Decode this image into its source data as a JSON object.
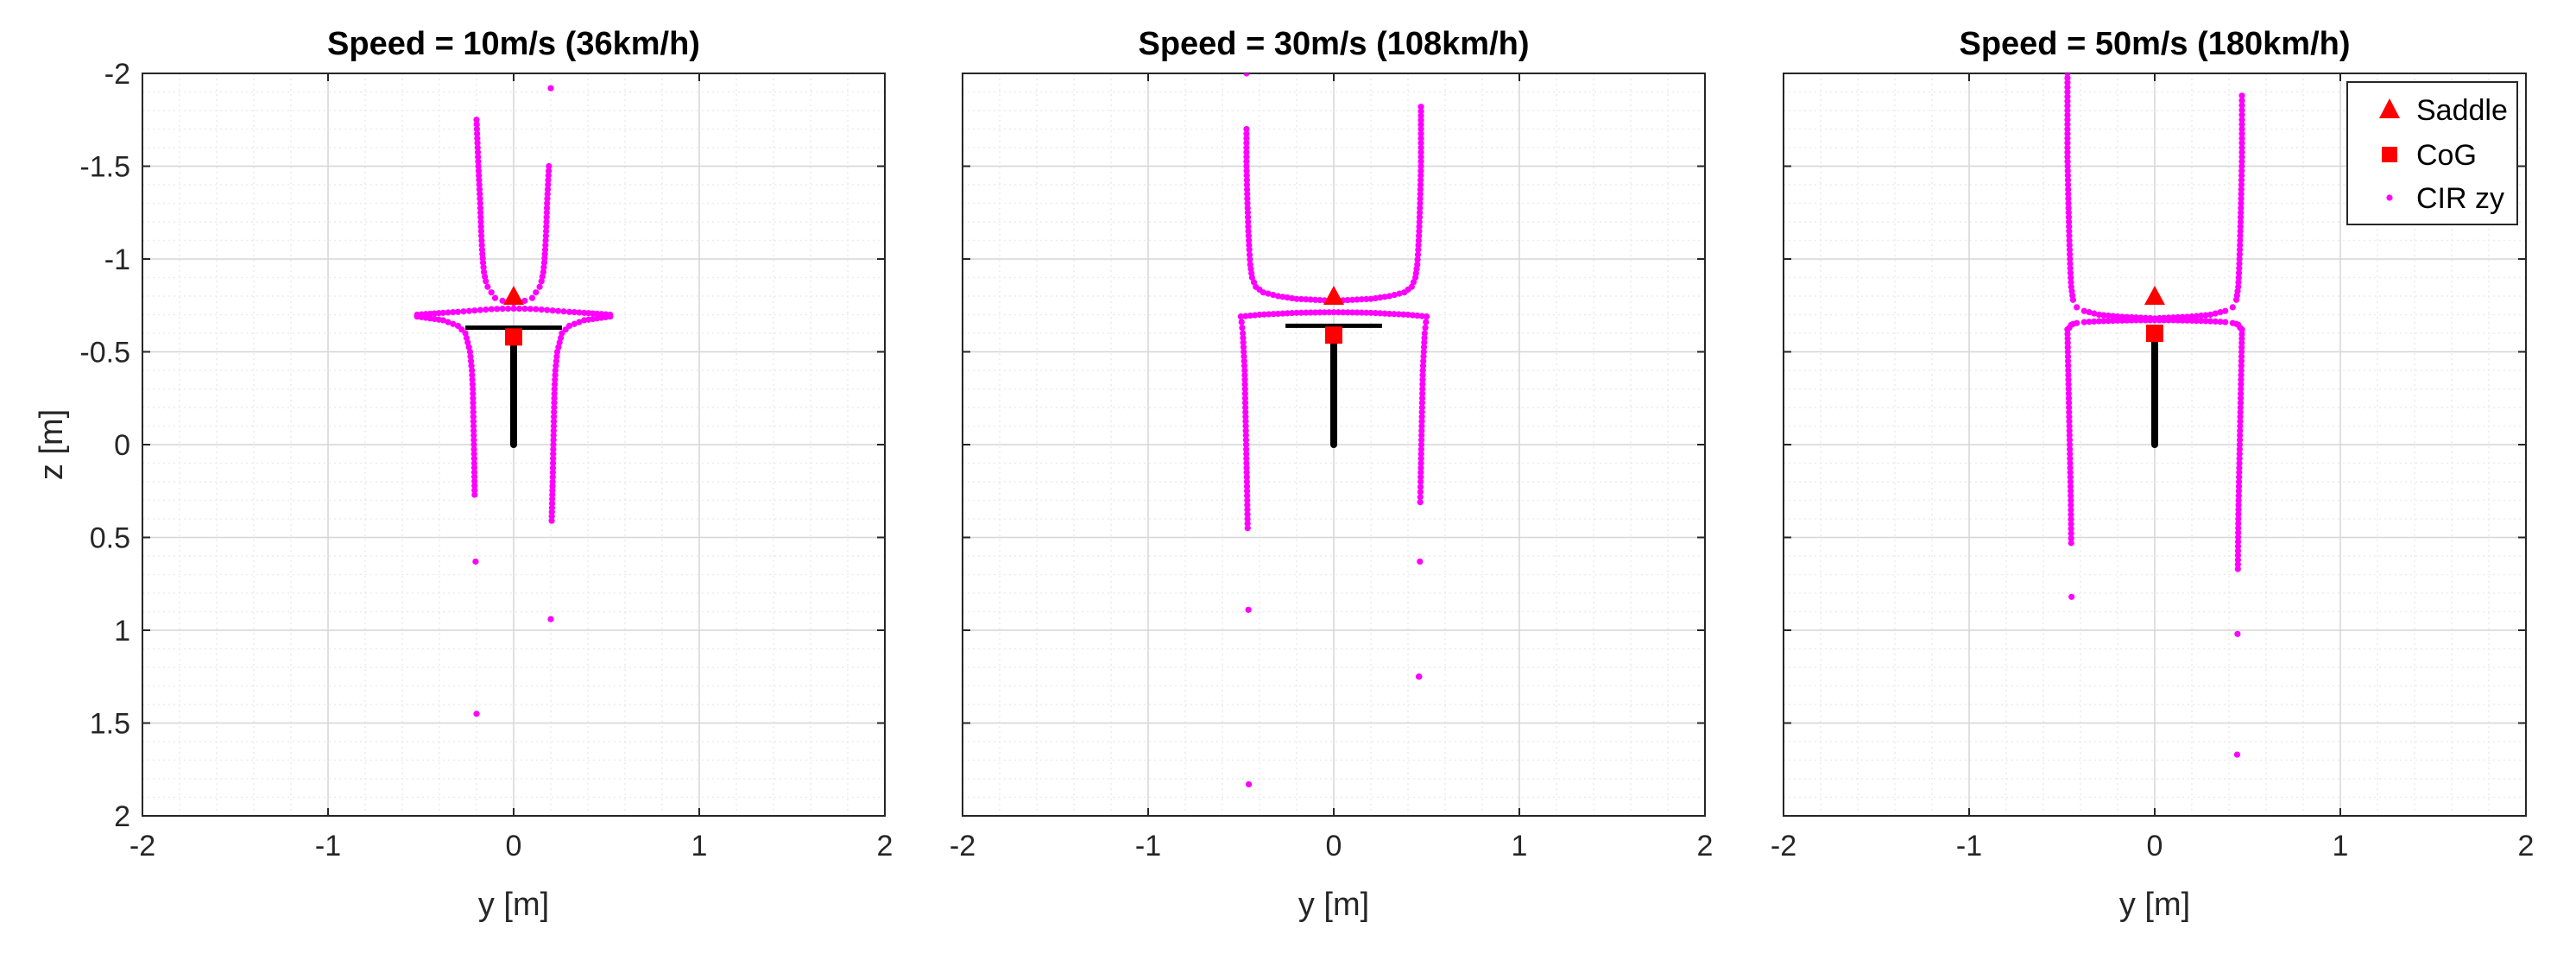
{
  "colors": {
    "cir": "#ff00ff",
    "marker": "#ff0000",
    "bike": "#000000",
    "grid_major": "#d6d6d6",
    "grid_minor": "#ececec",
    "axis": "#262626"
  },
  "chart_data": [
    {
      "type": "scatter",
      "title": "Speed = 10m/s (36km/h)",
      "xlabel": "y [m]",
      "ylabel": "z [m]",
      "xlim": [
        -2,
        2
      ],
      "ylim": [
        -2,
        2
      ],
      "y_reversed": true,
      "grid": "major and minor",
      "x_ticks": [
        "-2",
        "-1",
        "0",
        "1",
        "2"
      ],
      "y_ticks": [
        "-2",
        "-1.5",
        "-1",
        "-0.5",
        "0",
        "0.5",
        "1",
        "1.5",
        "2"
      ],
      "saddle": {
        "y": 0,
        "z": -0.8
      },
      "cog": {
        "y": 0,
        "z": -0.58
      },
      "bike": {
        "handlebar_y": [
          -0.26,
          0.26
        ],
        "handlebar_z": -0.63,
        "stem_z": [
          0,
          -0.6
        ]
      },
      "series": [
        {
          "name": "CIR zy",
          "x": [
            -0.2,
            -0.19,
            -0.18,
            -0.175,
            -0.17,
            -0.165,
            -0.16,
            -0.15,
            -0.14,
            -0.12,
            -0.1,
            -0.06,
            -0.03,
            0.0,
            0.03,
            0.06,
            0.1,
            0.12,
            0.14,
            0.15,
            0.16,
            0.165,
            0.17,
            0.175,
            0.18,
            0.19,
            0.2
          ],
          "y": [
            -1.75,
            -1.5,
            -1.3,
            -1.15,
            -1.05,
            -0.98,
            -0.93,
            -0.88,
            -0.85,
            -0.82,
            -0.79,
            -0.775,
            -0.77,
            -0.765,
            -0.77,
            -0.775,
            -0.79,
            -0.82,
            -0.85,
            -0.88,
            -0.93,
            -0.98,
            -1.05,
            -1.15,
            -1.3,
            -1.5,
            -1.92
          ]
        },
        {
          "name": "",
          "x": [
            -0.52,
            -0.45,
            -0.38,
            -0.3,
            -0.24,
            -0.18,
            -0.12,
            -0.06,
            0.0,
            0.06,
            0.12,
            0.18,
            0.24,
            0.3,
            0.38,
            0.45,
            0.52
          ],
          "y": [
            -0.7,
            -0.705,
            -0.71,
            -0.715,
            -0.72,
            -0.725,
            -0.73,
            -0.732,
            -0.733,
            -0.732,
            -0.73,
            -0.725,
            -0.72,
            -0.715,
            -0.71,
            -0.705,
            -0.7
          ]
        },
        {
          "name": "",
          "x": [
            -0.52,
            -0.45,
            -0.38,
            -0.3,
            -0.26,
            -0.235,
            -0.225,
            -0.22,
            -0.218,
            -0.216,
            -0.214,
            -0.212,
            -0.21,
            -0.205,
            -0.2
          ],
          "y": [
            -0.69,
            -0.68,
            -0.67,
            -0.64,
            -0.6,
            -0.5,
            -0.4,
            -0.3,
            -0.2,
            -0.1,
            0.0,
            0.1,
            0.27,
            0.63,
            1.45
          ]
        },
        {
          "name": "",
          "x": [
            0.52,
            0.45,
            0.38,
            0.3,
            0.26,
            0.235,
            0.225,
            0.22,
            0.218,
            0.216,
            0.214,
            0.212,
            0.21,
            0.205,
            0.2
          ],
          "y": [
            -0.69,
            -0.68,
            -0.67,
            -0.64,
            -0.6,
            -0.5,
            -0.4,
            -0.3,
            -0.2,
            -0.1,
            0.0,
            0.1,
            0.2,
            0.41,
            0.94
          ]
        }
      ]
    },
    {
      "type": "scatter",
      "title": "Speed = 30m/s (108km/h)",
      "xlabel": "y [m]",
      "ylabel": "",
      "xlim": [
        -2,
        2
      ],
      "ylim": [
        -2,
        2
      ],
      "y_reversed": true,
      "grid": "major and minor",
      "x_ticks": [
        "-2",
        "-1",
        "0",
        "1",
        "2"
      ],
      "y_ticks": [],
      "saddle": {
        "y": 0,
        "z": -0.8
      },
      "cog": {
        "y": 0,
        "z": -0.59
      },
      "bike": {
        "handlebar_y": [
          -0.26,
          0.26
        ],
        "handlebar_z": -0.64,
        "stem_z": [
          0,
          -0.6
        ]
      },
      "series": [
        {
          "name": "CIR zy",
          "x": [
            -0.47,
            -0.47,
            -0.47,
            -0.465,
            -0.46,
            -0.455,
            -0.45,
            -0.44,
            -0.42,
            -0.38,
            -0.3,
            -0.2,
            -0.1,
            0.0,
            0.1,
            0.2,
            0.3,
            0.38,
            0.42,
            0.44,
            0.45,
            0.455,
            0.46,
            0.465,
            0.47,
            0.47,
            0.47
          ],
          "y": [
            -2.0,
            -1.7,
            -1.5,
            -1.3,
            -1.15,
            -1.05,
            -0.97,
            -0.9,
            -0.85,
            -0.82,
            -0.8,
            -0.785,
            -0.78,
            -0.775,
            -0.78,
            -0.785,
            -0.8,
            -0.82,
            -0.85,
            -0.9,
            -0.97,
            -1.05,
            -1.15,
            -1.3,
            -1.5,
            -1.7,
            -1.82
          ]
        },
        {
          "name": "",
          "x": [
            -0.5,
            -0.4,
            -0.3,
            -0.2,
            -0.1,
            0.0,
            0.1,
            0.2,
            0.3,
            0.4,
            0.5
          ],
          "y": [
            -0.69,
            -0.7,
            -0.705,
            -0.71,
            -0.712,
            -0.713,
            -0.712,
            -0.71,
            -0.705,
            -0.7,
            -0.69
          ]
        },
        {
          "name": "",
          "x": [
            -0.5,
            -0.49,
            -0.485,
            -0.48,
            -0.478,
            -0.476,
            -0.474,
            -0.472,
            -0.47,
            -0.468,
            -0.466,
            -0.464,
            -0.46,
            -0.458
          ],
          "y": [
            -0.69,
            -0.6,
            -0.5,
            -0.4,
            -0.3,
            -0.2,
            -0.1,
            0.0,
            0.1,
            0.2,
            0.3,
            0.45,
            0.89,
            1.83
          ]
        },
        {
          "name": "",
          "x": [
            0.5,
            0.49,
            0.485,
            0.48,
            0.478,
            0.476,
            0.474,
            0.472,
            0.47,
            0.468,
            0.466,
            0.464,
            0.46,
            0.458
          ],
          "y": [
            -0.69,
            -0.6,
            -0.5,
            -0.4,
            -0.3,
            -0.2,
            -0.1,
            0.0,
            0.1,
            0.2,
            0.31,
            0.63,
            1.25,
            1.25
          ]
        }
      ]
    },
    {
      "type": "scatter",
      "title": "Speed = 50m/s (180km/h)",
      "xlabel": "y [m]",
      "ylabel": "",
      "xlim": [
        -2,
        2
      ],
      "ylim": [
        -2,
        2
      ],
      "y_reversed": true,
      "grid": "major and minor",
      "x_ticks": [
        "-2",
        "-1",
        "0",
        "1",
        "2"
      ],
      "y_ticks": [],
      "legend": {
        "placement": "top-right",
        "entries": [
          "Saddle",
          "CoG",
          "CIR zy"
        ]
      },
      "saddle": {
        "y": 0,
        "z": -0.8
      },
      "cog": {
        "y": 0,
        "z": -0.6
      },
      "bike": {
        "handlebar_y": [
          0,
          0
        ],
        "handlebar_z": -0.66,
        "stem_z": [
          0,
          -0.6
        ]
      },
      "series": [
        {
          "name": "CIR zy",
          "x": [
            -0.47,
            -0.47,
            -0.47,
            -0.465,
            -0.46,
            -0.455,
            -0.45,
            -0.44,
            -0.42,
            -0.38,
            -0.3,
            -0.2,
            -0.1,
            0.0,
            0.1,
            0.2,
            0.3,
            0.38,
            0.42,
            0.44,
            0.45,
            0.455,
            0.46,
            0.465,
            0.47,
            0.47,
            0.47
          ],
          "y": [
            -2.0,
            -1.8,
            -1.55,
            -1.3,
            -1.1,
            -0.95,
            -0.85,
            -0.78,
            -0.74,
            -0.72,
            -0.7,
            -0.69,
            -0.685,
            -0.68,
            -0.685,
            -0.69,
            -0.7,
            -0.72,
            -0.74,
            -0.78,
            -0.85,
            -0.95,
            -1.1,
            -1.3,
            -1.55,
            -1.75,
            -1.88
          ]
        },
        {
          "name": "",
          "x": [
            -0.47,
            -0.46,
            -0.45,
            -0.44,
            -0.42,
            -0.38,
            -0.3,
            -0.2,
            -0.1,
            0.0,
            0.1,
            0.2,
            0.3,
            0.38,
            0.42,
            0.44,
            0.45,
            0.46,
            0.47
          ],
          "y": [
            -0.62,
            -0.63,
            -0.645,
            -0.65,
            -0.655,
            -0.66,
            -0.665,
            -0.668,
            -0.67,
            -0.67,
            -0.67,
            -0.668,
            -0.665,
            -0.66,
            -0.655,
            -0.65,
            -0.645,
            -0.63,
            -0.62
          ]
        },
        {
          "name": "",
          "x": [
            -0.47,
            -0.468,
            -0.466,
            -0.464,
            -0.462,
            -0.46,
            -0.458,
            -0.456,
            -0.454,
            -0.452,
            -0.45,
            -0.448
          ],
          "y": [
            -0.62,
            -0.5,
            -0.4,
            -0.3,
            -0.2,
            -0.1,
            0.0,
            0.1,
            0.2,
            0.3,
            0.53,
            0.82
          ]
        },
        {
          "name": "",
          "x": [
            0.47,
            0.468,
            0.466,
            0.464,
            0.462,
            0.46,
            0.458,
            0.456,
            0.454,
            0.452,
            0.45,
            0.448,
            0.446,
            0.444
          ],
          "y": [
            -0.62,
            -0.5,
            -0.4,
            -0.3,
            -0.2,
            -0.1,
            0.0,
            0.1,
            0.2,
            0.3,
            0.45,
            0.67,
            1.02,
            1.67
          ]
        }
      ]
    }
  ]
}
